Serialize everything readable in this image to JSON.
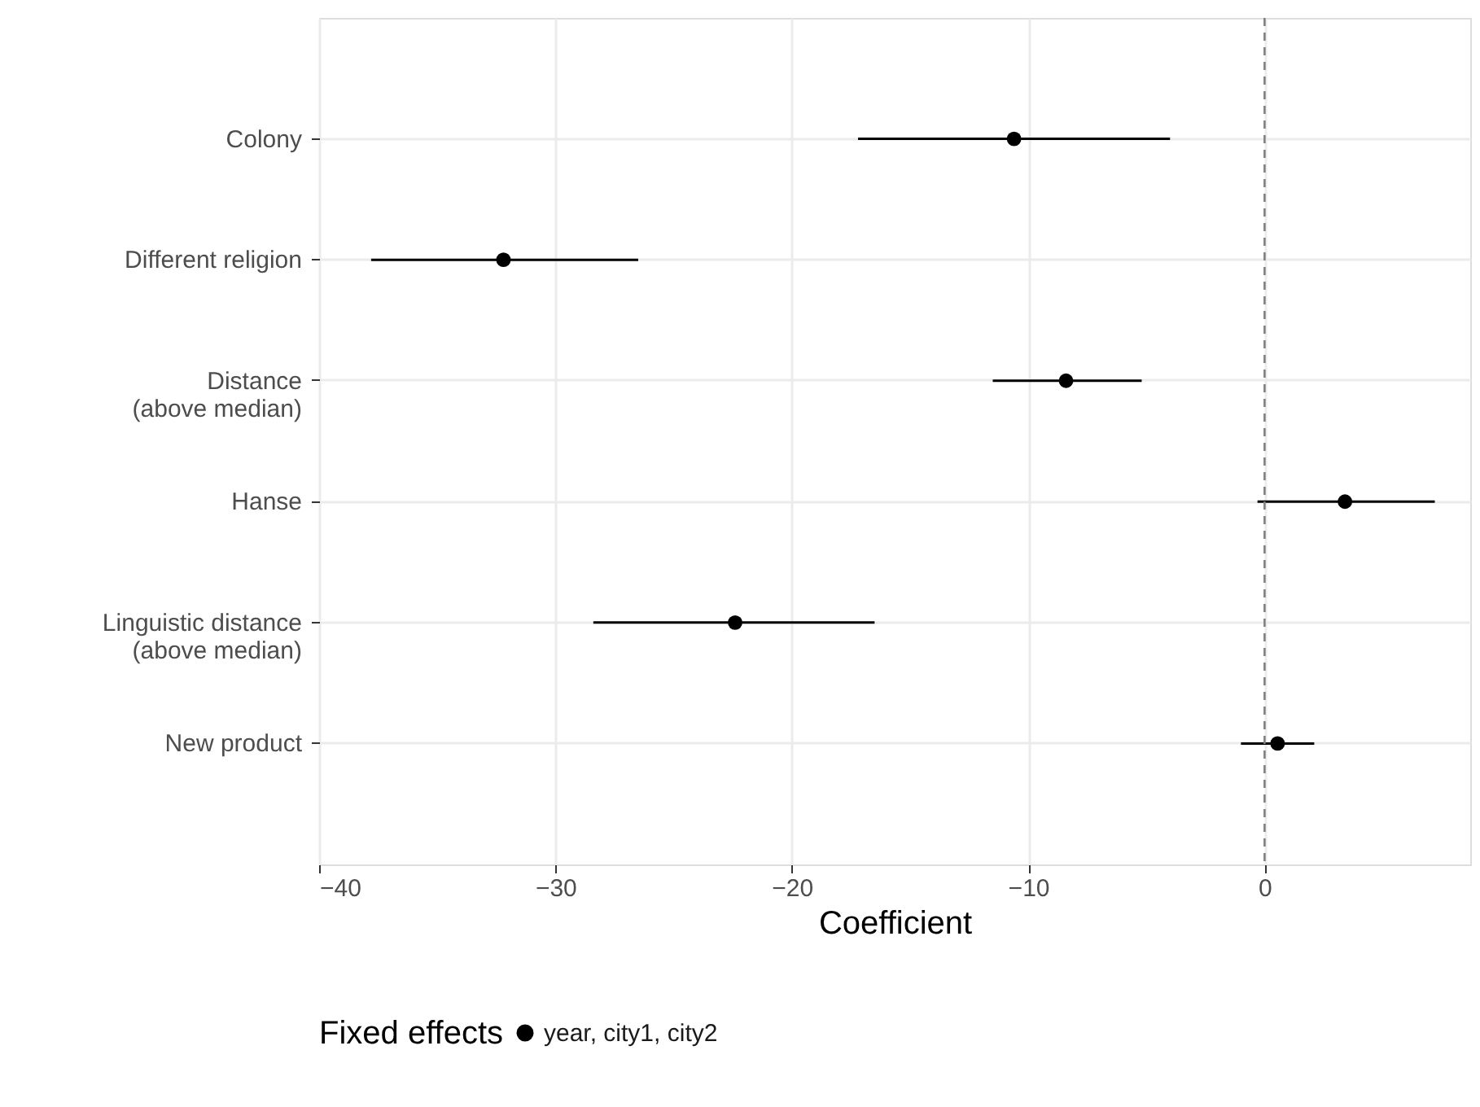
{
  "chart_data": {
    "type": "scatter",
    "xlabel": "Coefficient",
    "legend_title": "Fixed effects",
    "categories": [
      "Colony",
      "Different religion",
      "Distance\n(above median)",
      "Hanse",
      "Linguistic distance\n(above median)",
      "New product"
    ],
    "orientation": "horizontal",
    "series": [
      {
        "name": "year, city1, city2",
        "color": "#000000",
        "values": [
          -10.6,
          -32.2,
          -8.4,
          3.4,
          -22.4,
          0.55
        ],
        "errors": [
          [
            -17.2,
            -4.0
          ],
          [
            -37.8,
            -26.5
          ],
          [
            -11.5,
            -5.2
          ],
          [
            -0.3,
            7.2
          ],
          [
            -28.4,
            -16.5
          ],
          [
            -1.0,
            2.1
          ]
        ]
      }
    ],
    "xlim": [
      -40,
      8.7
    ],
    "xticks": [
      -40,
      -30,
      -20,
      -10,
      0
    ],
    "ref_lines": [
      {
        "axis": "x",
        "value": 0,
        "color": "#808080",
        "line_style": "dashed"
      }
    ],
    "grid": true,
    "legend": "bottom",
    "marker": "circle"
  }
}
